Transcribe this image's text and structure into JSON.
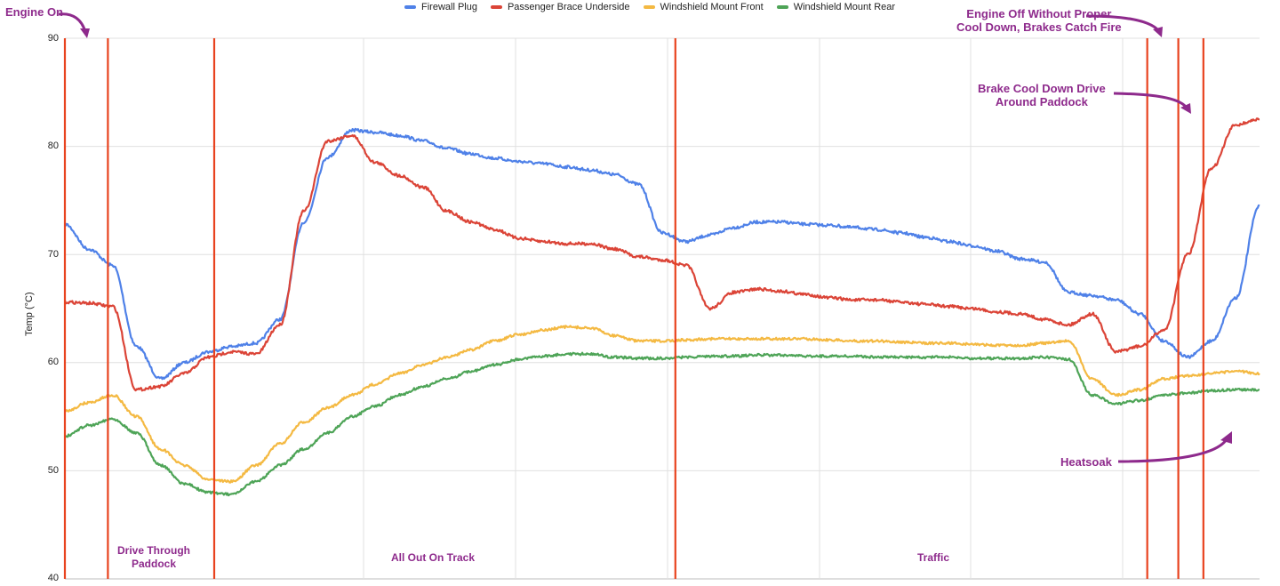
{
  "chart_data": {
    "type": "line",
    "title": "",
    "xlabel": "",
    "ylabel": "Temp (°C)",
    "ylim": [
      40,
      90
    ],
    "yticks": [
      "90",
      "80",
      "70",
      "60",
      "50",
      "40"
    ],
    "grid": true,
    "legend_position": "top",
    "x": [
      0,
      2,
      4,
      6,
      8,
      10,
      12,
      14,
      16,
      18,
      20,
      22,
      24,
      26,
      28,
      30,
      32,
      34,
      36,
      38,
      40,
      42,
      44,
      46,
      48,
      50,
      52,
      54,
      56,
      58,
      60,
      62,
      64,
      66,
      68,
      70,
      72,
      74,
      76,
      78,
      80,
      82,
      84,
      86,
      88,
      90,
      92,
      94,
      96,
      98,
      100
    ],
    "series": [
      {
        "name": "Firewall Plug",
        "color": "#4f81e8",
        "values": [
          72.8,
          70.5,
          69.0,
          61.5,
          58.5,
          60.0,
          61.0,
          61.5,
          61.8,
          64.0,
          73.0,
          79.0,
          81.5,
          81.3,
          81.0,
          80.5,
          79.8,
          79.3,
          78.9,
          78.6,
          78.4,
          78.1,
          77.8,
          77.4,
          76.5,
          72.0,
          71.2,
          71.8,
          72.5,
          73.0,
          73.0,
          72.8,
          72.7,
          72.5,
          72.3,
          72.0,
          71.6,
          71.2,
          70.8,
          70.3,
          69.6,
          69.3,
          66.5,
          66.2,
          65.8,
          64.5,
          62.0,
          60.5,
          62.0,
          66.0,
          74.5
        ]
      },
      {
        "name": "Passenger Brace Underside",
        "color": "#db4437",
        "values": [
          65.6,
          65.5,
          65.2,
          57.5,
          57.8,
          59.0,
          60.5,
          61.0,
          60.8,
          63.5,
          74.0,
          80.5,
          81.0,
          78.5,
          77.3,
          76.2,
          74.0,
          73.0,
          72.3,
          71.5,
          71.2,
          71.0,
          71.0,
          70.5,
          69.8,
          69.5,
          69.0,
          65.0,
          66.5,
          66.8,
          66.6,
          66.3,
          66.0,
          65.8,
          65.8,
          65.6,
          65.4,
          65.2,
          65.0,
          64.7,
          64.5,
          64.0,
          63.5,
          64.5,
          61.0,
          61.5,
          63.0,
          70.0,
          78.0,
          82.0,
          82.5
        ]
      },
      {
        "name": "Windshield Mount Front",
        "color": "#f4b942",
        "values": [
          55.5,
          56.3,
          57.0,
          55.0,
          52.0,
          50.5,
          49.2,
          49.0,
          50.5,
          52.5,
          54.5,
          55.8,
          57.0,
          58.0,
          59.0,
          59.8,
          60.5,
          61.2,
          62.0,
          62.6,
          63.0,
          63.3,
          63.2,
          62.5,
          62.0,
          62.0,
          62.1,
          62.2,
          62.2,
          62.2,
          62.2,
          62.2,
          62.1,
          62.0,
          62.0,
          61.9,
          61.8,
          61.8,
          61.7,
          61.6,
          61.6,
          61.8,
          62.0,
          58.5,
          57.0,
          57.5,
          58.5,
          58.8,
          59.0,
          59.2,
          59.0
        ]
      },
      {
        "name": "Windshield Mount Rear",
        "color": "#4ea457",
        "values": [
          53.2,
          54.2,
          54.8,
          53.5,
          50.5,
          48.8,
          48.0,
          47.8,
          49.0,
          50.5,
          52.0,
          53.5,
          55.0,
          56.0,
          57.0,
          57.8,
          58.5,
          59.2,
          59.8,
          60.3,
          60.6,
          60.8,
          60.8,
          60.5,
          60.4,
          60.4,
          60.5,
          60.6,
          60.6,
          60.7,
          60.7,
          60.6,
          60.6,
          60.6,
          60.5,
          60.5,
          60.5,
          60.5,
          60.4,
          60.4,
          60.4,
          60.5,
          60.3,
          57.0,
          56.2,
          56.5,
          57.0,
          57.2,
          57.4,
          57.5,
          57.5
        ]
      }
    ],
    "vertical_markers_x": [
      0,
      3.6,
      12.5,
      51.1,
      90.6,
      93.2,
      95.3
    ],
    "vertical_marker_color": "#e8431f",
    "annotations": [
      {
        "text": "Engine On",
        "kind": "callout"
      },
      {
        "text": "Engine Off Without Proper Cool Down, Brakes Catch Fire",
        "kind": "callout"
      },
      {
        "text": "Brake Cool Down Drive Around Paddock",
        "kind": "callout"
      },
      {
        "text": "Heatsoak",
        "kind": "callout"
      },
      {
        "text": "Drive Through Paddock",
        "kind": "region"
      },
      {
        "text": "All Out On Track",
        "kind": "region"
      },
      {
        "text": "Traffic",
        "kind": "region"
      }
    ]
  },
  "legend": [
    {
      "label": "Firewall Plug",
      "color": "#4f81e8"
    },
    {
      "label": "Passenger Brace Underside",
      "color": "#db4437"
    },
    {
      "label": "Windshield Mount Front",
      "color": "#f4b942"
    },
    {
      "label": "Windshield Mount Rear",
      "color": "#4ea457"
    }
  ],
  "annotations": {
    "engine_on": "Engine On",
    "engine_off_line1": "Engine Off Without Proper",
    "engine_off_line2": "Cool Down, Brakes Catch Fire",
    "brake_cool_line1": "Brake Cool Down Drive",
    "brake_cool_line2": "Around Paddock",
    "heatsoak": "Heatsoak",
    "drive_paddock_line1": "Drive Through",
    "drive_paddock_line2": "Paddock",
    "all_out": "All Out On Track",
    "traffic": "Traffic"
  },
  "axis": {
    "ylabel": "Temp (°C)",
    "ticks": [
      "90",
      "80",
      "70",
      "60",
      "50",
      "40"
    ]
  }
}
